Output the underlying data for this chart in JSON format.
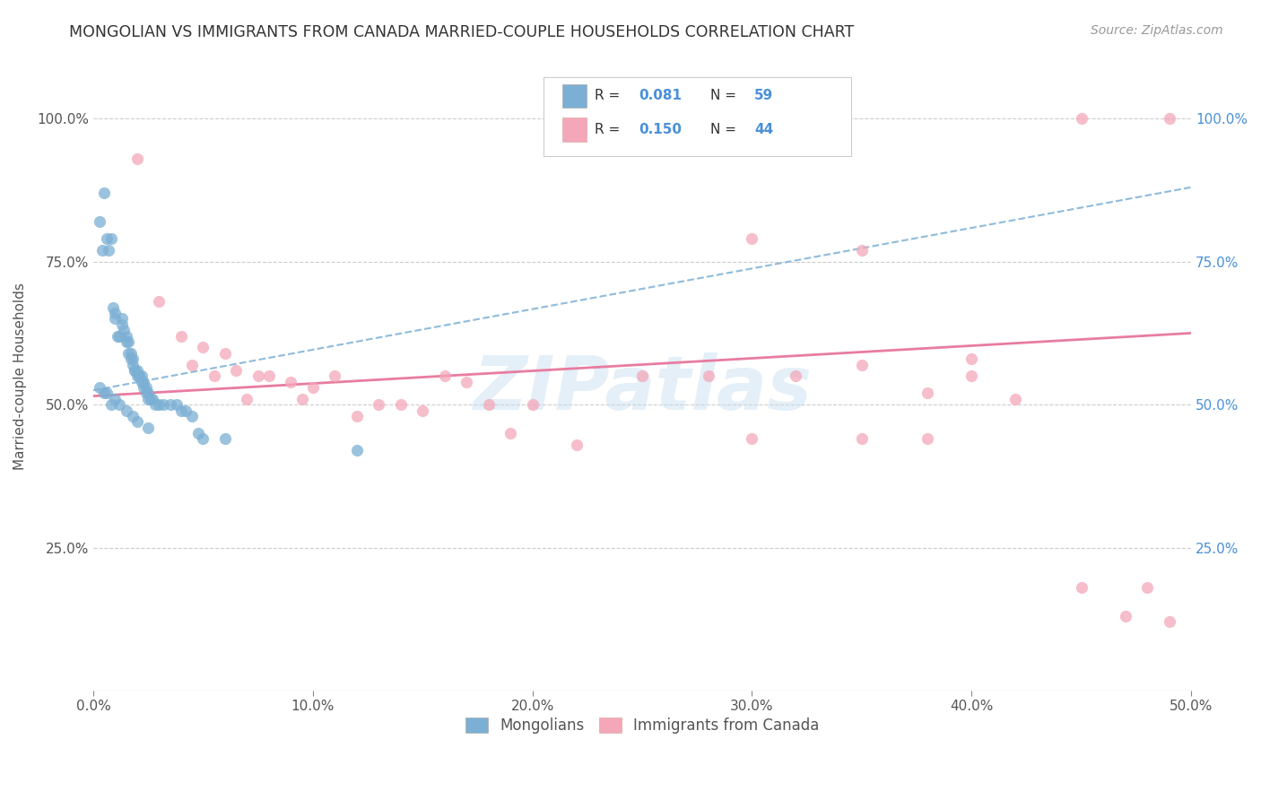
{
  "title": "MONGOLIAN VS IMMIGRANTS FROM CANADA MARRIED-COUPLE HOUSEHOLDS CORRELATION CHART",
  "source": "Source: ZipAtlas.com",
  "ylabel": "Married-couple Households",
  "x_ticks": [
    0.0,
    0.1,
    0.2,
    0.3,
    0.4,
    0.5
  ],
  "x_tick_labels": [
    "0.0%",
    "10.0%",
    "20.0%",
    "30.0%",
    "40.0%",
    "50.0%"
  ],
  "y_ticks": [
    0.0,
    0.25,
    0.5,
    0.75,
    1.0
  ],
  "y_tick_labels_left": [
    "",
    "25.0%",
    "50.0%",
    "75.0%",
    "100.0%"
  ],
  "y_tick_labels_right": [
    "",
    "25.0%",
    "50.0%",
    "75.0%",
    "100.0%"
  ],
  "xlim": [
    0.0,
    0.5
  ],
  "ylim": [
    0.0,
    1.1
  ],
  "legend_label1": "Mongolians",
  "legend_label2": "Immigrants from Canada",
  "blue_color": "#7bafd4",
  "pink_color": "#f4a7b9",
  "blue_line_color": "#7bafd4",
  "pink_line_color": "#e87ca0",
  "text_blue": "#4a90d9",
  "watermark": "ZIPatlas",
  "blue_scatter_x": [
    0.003,
    0.004,
    0.005,
    0.006,
    0.007,
    0.008,
    0.009,
    0.01,
    0.01,
    0.011,
    0.012,
    0.013,
    0.013,
    0.014,
    0.015,
    0.015,
    0.016,
    0.016,
    0.017,
    0.017,
    0.018,
    0.018,
    0.019,
    0.019,
    0.02,
    0.02,
    0.021,
    0.021,
    0.022,
    0.022,
    0.023,
    0.023,
    0.024,
    0.024,
    0.025,
    0.025,
    0.026,
    0.027,
    0.028,
    0.03,
    0.032,
    0.035,
    0.038,
    0.04,
    0.042,
    0.045,
    0.048,
    0.05,
    0.06,
    0.12,
    0.005,
    0.003,
    0.006,
    0.008,
    0.01,
    0.012,
    0.015,
    0.018,
    0.02,
    0.025
  ],
  "blue_scatter_y": [
    0.82,
    0.77,
    0.87,
    0.79,
    0.77,
    0.79,
    0.67,
    0.65,
    0.66,
    0.62,
    0.62,
    0.65,
    0.64,
    0.63,
    0.62,
    0.61,
    0.61,
    0.59,
    0.59,
    0.58,
    0.58,
    0.57,
    0.56,
    0.56,
    0.56,
    0.55,
    0.55,
    0.55,
    0.55,
    0.54,
    0.54,
    0.53,
    0.53,
    0.52,
    0.52,
    0.51,
    0.51,
    0.51,
    0.5,
    0.5,
    0.5,
    0.5,
    0.5,
    0.49,
    0.49,
    0.48,
    0.45,
    0.44,
    0.44,
    0.42,
    0.52,
    0.53,
    0.52,
    0.5,
    0.51,
    0.5,
    0.49,
    0.48,
    0.47,
    0.46
  ],
  "pink_scatter_x": [
    0.02,
    0.03,
    0.04,
    0.045,
    0.05,
    0.055,
    0.06,
    0.065,
    0.07,
    0.075,
    0.08,
    0.09,
    0.095,
    0.1,
    0.11,
    0.12,
    0.13,
    0.14,
    0.15,
    0.16,
    0.17,
    0.18,
    0.19,
    0.2,
    0.22,
    0.25,
    0.28,
    0.3,
    0.32,
    0.35,
    0.38,
    0.4,
    0.42,
    0.45,
    0.47,
    0.49,
    0.3,
    0.35,
    0.4,
    0.45,
    0.35,
    0.38,
    0.48,
    0.49
  ],
  "pink_scatter_y": [
    0.93,
    0.68,
    0.62,
    0.57,
    0.6,
    0.55,
    0.59,
    0.56,
    0.51,
    0.55,
    0.55,
    0.54,
    0.51,
    0.53,
    0.55,
    0.48,
    0.5,
    0.5,
    0.49,
    0.55,
    0.54,
    0.5,
    0.45,
    0.5,
    0.43,
    0.55,
    0.55,
    0.44,
    0.55,
    0.57,
    0.52,
    0.55,
    0.51,
    0.18,
    0.13,
    1.0,
    0.79,
    0.77,
    0.58,
    1.0,
    0.44,
    0.44,
    0.18,
    0.12
  ],
  "blue_trend_x0": 0.0,
  "blue_trend_x1": 0.5,
  "blue_trend_y0": 0.525,
  "blue_trend_y1": 0.88,
  "pink_trend_x0": 0.0,
  "pink_trend_x1": 0.5,
  "pink_trend_y0": 0.515,
  "pink_trend_y1": 0.625
}
